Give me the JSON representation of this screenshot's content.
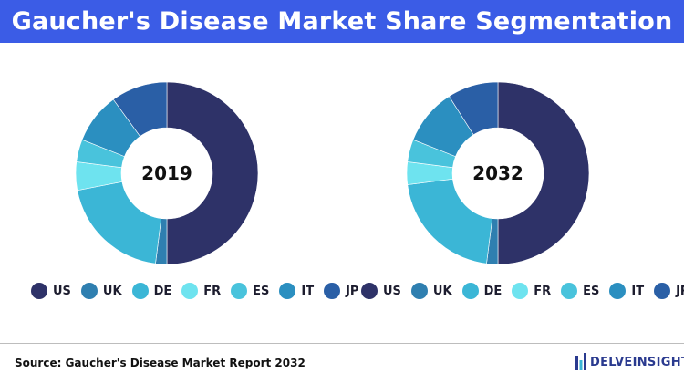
{
  "header": {
    "title": "Gaucher's Disease Market Share Segmentation"
  },
  "chart_data": [
    {
      "type": "pie",
      "center_label": "2019",
      "categories": [
        "US",
        "UK",
        "DE",
        "FR",
        "ES",
        "IT",
        "JP"
      ],
      "values": [
        50,
        2,
        20,
        5,
        4,
        9,
        10
      ],
      "colors": [
        "#2e3268",
        "#2f7fb0",
        "#3bb6d6",
        "#6ee3ef",
        "#49c3dc",
        "#2b8fc0",
        "#2a5fa6"
      ],
      "legend": "bottom"
    },
    {
      "type": "pie",
      "center_label": "2032",
      "categories": [
        "US",
        "UK",
        "DE",
        "FR",
        "ES",
        "IT",
        "JP"
      ],
      "values": [
        50,
        2,
        21,
        4,
        4,
        10,
        9
      ],
      "colors": [
        "#2e3268",
        "#2f7fb0",
        "#3bb6d6",
        "#6ee3ef",
        "#49c3dc",
        "#2b8fc0",
        "#2a5fa6"
      ],
      "legend": "bottom"
    }
  ],
  "footer": {
    "source": "Source: Gaucher's Disease Market Report 2032",
    "logo_text": "DELVEINSIGHT",
    "logo_icon": "delveinsight-logo-icon"
  }
}
